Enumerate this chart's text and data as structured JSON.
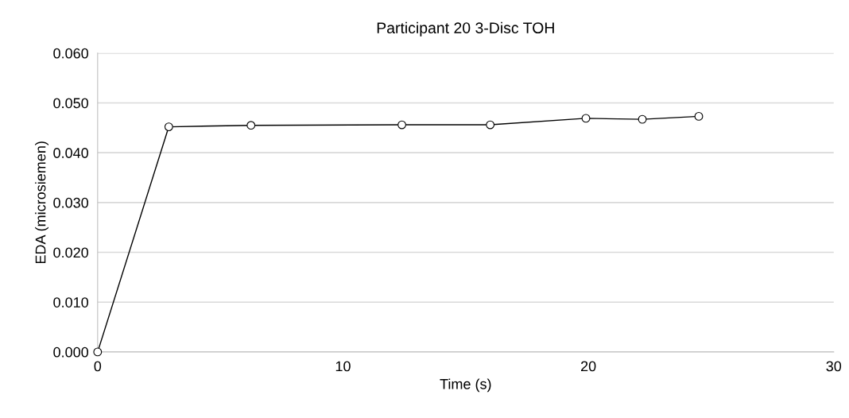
{
  "chart_data": {
    "type": "line",
    "title": "Participant 20 3-Disc TOH",
    "xlabel": "Time (s)",
    "ylabel": "EDA (microsiemen)",
    "series": [
      {
        "color": "#000000",
        "x": [
          0,
          2.9,
          6.25,
          12.4,
          16.0,
          19.9,
          22.2,
          24.5
        ],
        "values": [
          0.0,
          0.0452,
          0.0455,
          0.0456,
          0.0456,
          0.0469,
          0.0467,
          0.0473
        ]
      }
    ],
    "xlim": [
      0,
      30
    ],
    "xticks": [
      0,
      10,
      20,
      30
    ],
    "ylim": [
      0,
      0.06
    ],
    "yticks": [
      {
        "value": 0,
        "label": "0.000"
      },
      {
        "value": 0.01,
        "label": "0.010"
      },
      {
        "value": 0.02,
        "label": "0.020"
      },
      {
        "value": 0.03,
        "label": "0.030"
      },
      {
        "value": 0.04,
        "label": "0.040"
      },
      {
        "value": 0.05,
        "label": "0.050"
      },
      {
        "value": 0.06,
        "label": "0.060"
      }
    ],
    "grid": "y",
    "marker": "circle",
    "line_style": "solid"
  }
}
